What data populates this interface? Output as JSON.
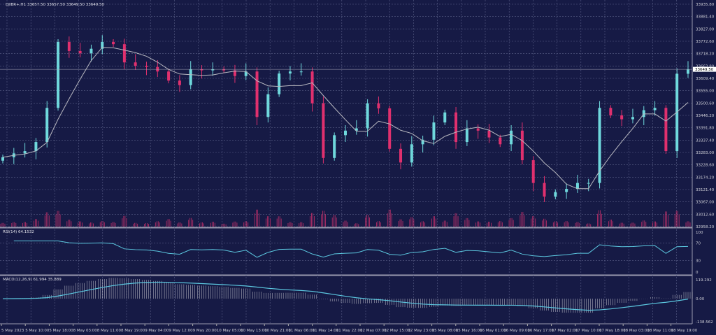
{
  "colors": {
    "background": "#161a45",
    "bull": "#6fd8dc",
    "bear": "#e0306e",
    "grid": "#5a5f88",
    "ma": "#b8b8c0",
    "indicator_line": "#5cc8e0",
    "volume": "#c0306a",
    "price_tag_bg": "#ffffff"
  },
  "main": {
    "title": "DJIBR+,H1  33657.50 33657.50 33649.50 33649.50",
    "current_price": "33649.50",
    "price_ticks": [
      "33935.80",
      "33881.40",
      "33827.00",
      "33772.60",
      "33718.20",
      "33663.80",
      "33609.40",
      "33555.00",
      "33500.60",
      "33446.20",
      "33391.80",
      "33337.40",
      "33283.00",
      "33228.60",
      "33174.20",
      "33121.40",
      "33067.00",
      "33012.60",
      "32958.20"
    ]
  },
  "rsi": {
    "title": "RSI(14) 64.1532",
    "ticks": [
      "100",
      "70",
      "30",
      "0"
    ]
  },
  "macd": {
    "title": "MACD(12,26,9) 61.994 35.889",
    "ticks": [
      "119.292",
      "0.00",
      "-138.562"
    ]
  },
  "time_axis": [
    "5 May 2023",
    "5 May 10:00",
    "5 May 18:00",
    "8 May 03:00",
    "8 May 11:00",
    "8 May 19:00",
    "9 May 04:00",
    "9 May 12:00",
    "9 May 20:00",
    "10 May 05:00",
    "10 May 13:00",
    "10 May 21:00",
    "11 May 06:00",
    "11 May 14:00",
    "11 May 22:00",
    "12 May 07:00",
    "12 May 15:00",
    "12 May 23:00",
    "15 May 08:00",
    "15 May 16:00",
    "16 May 01:00",
    "16 May 09:00",
    "16 May 17:00",
    "17 May 02:00",
    "17 May 10:00",
    "17 May 18:00",
    "18 May 03:00",
    "18 May 11:00",
    "18 May 19:00"
  ],
  "chart_data": {
    "type": "candlestick",
    "symbol": "DJIBR+",
    "timeframe": "H1",
    "ylim": [
      32958.2,
      33935.8
    ],
    "close": [
      33263,
      33280,
      33290,
      33330,
      33480,
      33770,
      33730,
      33720,
      33740,
      33770,
      33760,
      33680,
      33665,
      33660,
      33640,
      33600,
      33580,
      33650,
      33645,
      33650,
      33645,
      33620,
      33640,
      33440,
      33540,
      33631,
      33640,
      33640,
      33500,
      33260,
      33360,
      33380,
      33390,
      33500,
      33478,
      33300,
      33240,
      33320,
      33340,
      33416,
      33460,
      33330,
      33390,
      33380,
      33350,
      33320,
      33380,
      33250,
      33150,
      33090,
      33110,
      33124,
      33150,
      33150,
      33480,
      33447,
      33430,
      33440,
      33470,
      33480,
      33290,
      33630,
      33649.5
    ]
  }
}
